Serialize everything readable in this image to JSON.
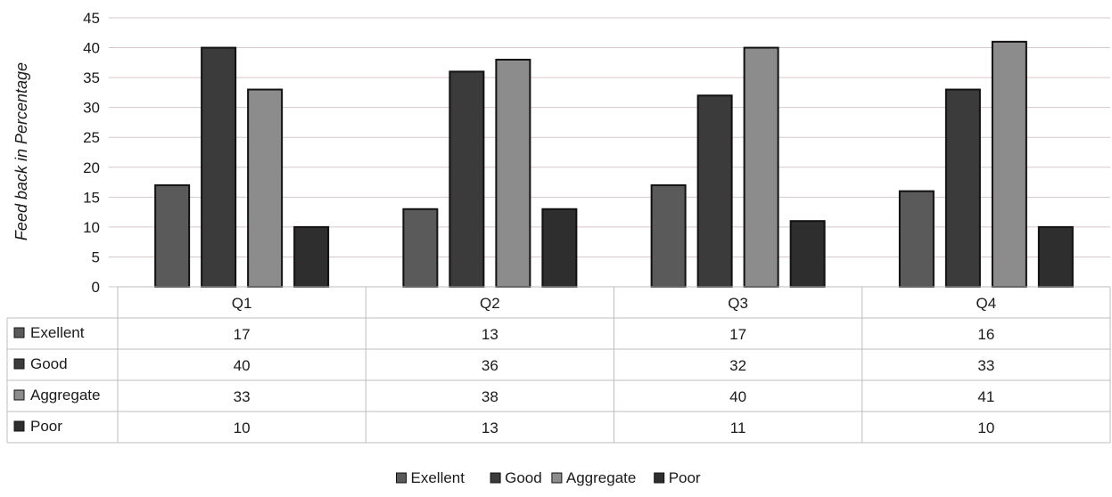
{
  "chart_data": {
    "type": "bar",
    "title": "",
    "xlabel": "",
    "ylabel": "Feed back in Percentage",
    "ylim": [
      0,
      45
    ],
    "yticks": [
      0,
      5,
      10,
      15,
      20,
      25,
      30,
      35,
      40,
      45
    ],
    "grid": true,
    "legend_position": "bottom",
    "data_table": true,
    "categories": [
      "Q1",
      "Q2",
      "Q3",
      "Q4"
    ],
    "series": [
      {
        "name": "Exellent",
        "values": [
          17,
          13,
          17,
          16
        ],
        "color": "#5a5a5a"
      },
      {
        "name": "Good",
        "values": [
          40,
          36,
          32,
          33
        ],
        "color": "#3b3b3b"
      },
      {
        "name": "Aggregate",
        "values": [
          33,
          38,
          40,
          41
        ],
        "color": "#8c8c8c"
      },
      {
        "name": "Poor",
        "values": [
          10,
          13,
          11,
          10
        ],
        "color": "#2e2e2e"
      }
    ]
  }
}
